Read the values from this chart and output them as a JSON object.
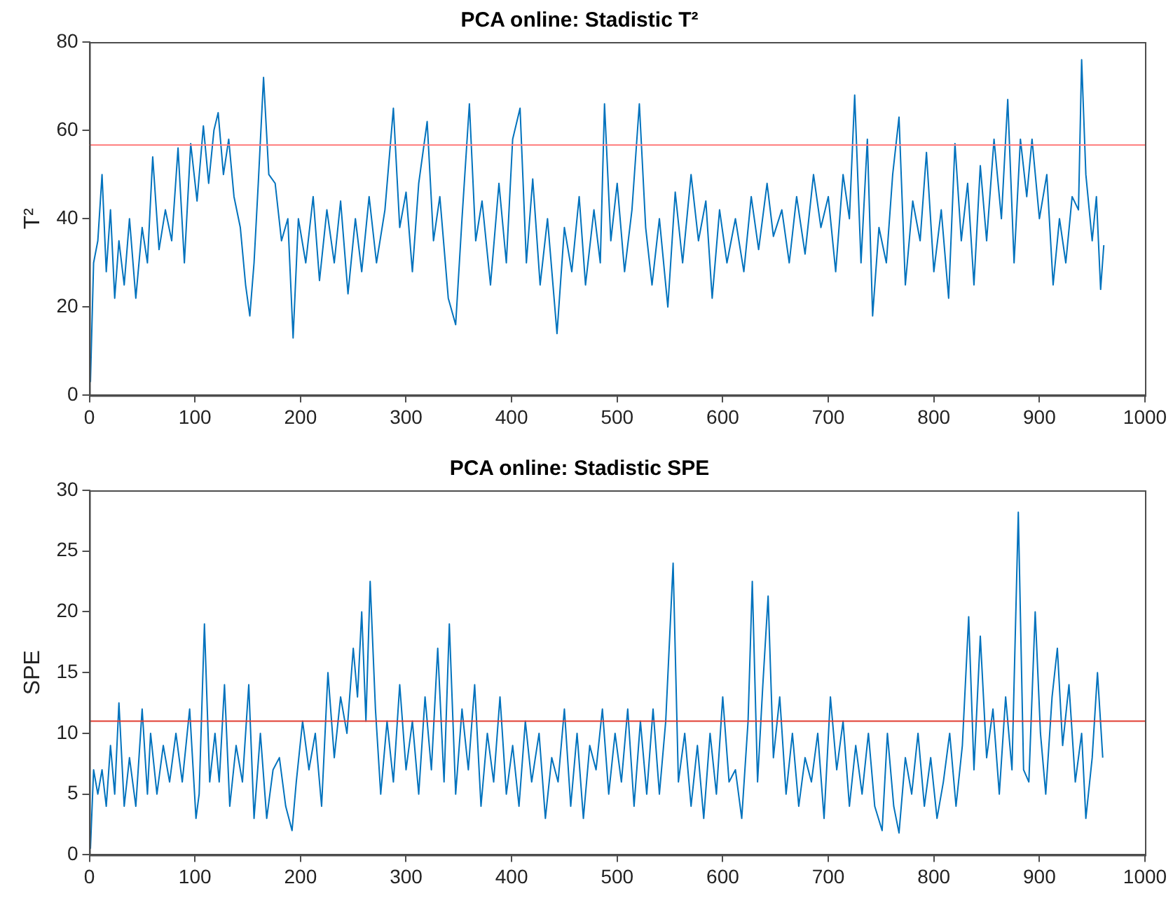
{
  "chart_data": [
    {
      "type": "line",
      "title": "PCA online: Stadistic T²",
      "ylabel": "T²",
      "xlim": [
        0,
        1000
      ],
      "xticks": [
        0,
        100,
        200,
        300,
        400,
        500,
        600,
        700,
        800,
        900,
        1000
      ],
      "ylim": [
        0,
        80
      ],
      "yticks": [
        0,
        20,
        40,
        60,
        80
      ],
      "grid": false,
      "legend": false,
      "marker": "none",
      "line_style": "solid",
      "ref_lines": [
        {
          "axis": "y",
          "value": 56.7,
          "color": "#ff8080"
        }
      ],
      "series": [
        {
          "color": "#0072bd",
          "x": [
            1,
            4,
            8,
            12,
            16,
            20,
            24,
            28,
            33,
            38,
            44,
            50,
            55,
            60,
            66,
            72,
            78,
            84,
            90,
            96,
            102,
            108,
            113,
            118,
            122,
            127,
            132,
            137,
            143,
            148,
            152,
            156,
            160,
            165,
            170,
            176,
            182,
            188,
            193,
            198,
            205,
            212,
            218,
            225,
            232,
            238,
            245,
            252,
            258,
            265,
            272,
            280,
            288,
            294,
            300,
            306,
            312,
            320,
            326,
            332,
            340,
            347,
            353,
            360,
            366,
            372,
            380,
            388,
            395,
            401,
            408,
            414,
            420,
            427,
            434,
            443,
            450,
            457,
            464,
            470,
            478,
            484,
            488,
            494,
            500,
            507,
            514,
            521,
            527,
            533,
            540,
            548,
            555,
            562,
            570,
            577,
            584,
            590,
            597,
            604,
            612,
            620,
            627,
            634,
            642,
            648,
            656,
            663,
            670,
            678,
            686,
            693,
            700,
            707,
            714,
            720,
            725,
            731,
            737,
            742,
            748,
            755,
            761,
            767,
            773,
            780,
            787,
            793,
            800,
            807,
            814,
            820,
            826,
            832,
            838,
            844,
            850,
            857,
            864,
            870,
            876,
            882,
            888,
            893,
            900,
            907,
            913,
            919,
            925,
            931,
            937,
            940,
            944,
            950,
            954,
            958,
            961
          ],
          "values": [
            3,
            30,
            35,
            50,
            28,
            42,
            22,
            35,
            25,
            40,
            22,
            38,
            30,
            54,
            33,
            42,
            35,
            56,
            30,
            57,
            44,
            61,
            48,
            60,
            64,
            50,
            58,
            45,
            38,
            25,
            18,
            30,
            48,
            72,
            50,
            48,
            35,
            40,
            13,
            40,
            30,
            45,
            26,
            42,
            30,
            44,
            23,
            40,
            28,
            45,
            30,
            42,
            65,
            38,
            46,
            28,
            48,
            62,
            35,
            45,
            22,
            16,
            40,
            66,
            35,
            44,
            25,
            48,
            30,
            58,
            65,
            30,
            49,
            25,
            40,
            14,
            38,
            28,
            45,
            25,
            42,
            30,
            66,
            35,
            48,
            28,
            42,
            66,
            38,
            25,
            40,
            20,
            46,
            30,
            50,
            35,
            44,
            22,
            42,
            30,
            40,
            28,
            45,
            33,
            48,
            36,
            42,
            30,
            45,
            32,
            50,
            38,
            45,
            28,
            50,
            40,
            68,
            30,
            58,
            18,
            38,
            30,
            50,
            63,
            25,
            44,
            35,
            55,
            28,
            42,
            22,
            57,
            35,
            48,
            25,
            52,
            35,
            58,
            40,
            67,
            30,
            58,
            45,
            58,
            40,
            50,
            25,
            40,
            30,
            45,
            42,
            76,
            50,
            35,
            45,
            24,
            34
          ]
        }
      ]
    },
    {
      "type": "line",
      "title": "PCA online: Stadistic SPE",
      "ylabel": "SPE",
      "xlim": [
        0,
        1000
      ],
      "xticks": [
        0,
        100,
        200,
        300,
        400,
        500,
        600,
        700,
        800,
        900,
        1000
      ],
      "ylim": [
        0,
        30
      ],
      "yticks": [
        0,
        5,
        10,
        15,
        20,
        25,
        30
      ],
      "grid": false,
      "legend": false,
      "marker": "none",
      "line_style": "solid",
      "ref_lines": [
        {
          "axis": "y",
          "value": 11,
          "color": "#e03c31"
        }
      ],
      "series": [
        {
          "color": "#0072bd",
          "x": [
            1,
            4,
            8,
            12,
            16,
            20,
            24,
            28,
            33,
            38,
            44,
            50,
            55,
            58,
            64,
            70,
            76,
            82,
            88,
            95,
            101,
            104,
            109,
            114,
            119,
            123,
            128,
            133,
            139,
            145,
            151,
            156,
            162,
            168,
            174,
            180,
            186,
            192,
            196,
            202,
            208,
            214,
            220,
            226,
            232,
            238,
            244,
            250,
            254,
            258,
            262,
            266,
            271,
            276,
            282,
            288,
            294,
            300,
            306,
            312,
            318,
            324,
            330,
            336,
            341,
            347,
            353,
            359,
            365,
            371,
            377,
            383,
            389,
            395,
            401,
            407,
            413,
            419,
            426,
            432,
            438,
            444,
            450,
            456,
            462,
            468,
            474,
            480,
            486,
            492,
            498,
            504,
            510,
            516,
            522,
            528,
            534,
            540,
            546,
            553,
            558,
            564,
            570,
            576,
            582,
            588,
            594,
            600,
            606,
            612,
            618,
            624,
            628,
            633,
            638,
            643,
            648,
            654,
            660,
            666,
            672,
            678,
            684,
            690,
            696,
            702,
            708,
            714,
            720,
            726,
            732,
            738,
            744,
            751,
            756,
            762,
            767,
            773,
            779,
            785,
            791,
            797,
            803,
            809,
            815,
            821,
            827,
            833,
            838,
            844,
            850,
            856,
            862,
            868,
            874,
            880,
            885,
            890,
            896,
            901,
            906,
            912,
            917,
            922,
            928,
            934,
            940,
            944,
            950,
            955,
            960
          ],
          "values": [
            0.5,
            7,
            5,
            7,
            4,
            9,
            5,
            12.5,
            4,
            8,
            4,
            12,
            5,
            10,
            5,
            9,
            6,
            10,
            6,
            12,
            3,
            5,
            19,
            6,
            10,
            6,
            14,
            4,
            9,
            6,
            14,
            3,
            10,
            3,
            7,
            8,
            4,
            2,
            6,
            11,
            7,
            10,
            4,
            15,
            8,
            13,
            10,
            17,
            13,
            20,
            11,
            22.5,
            12,
            5,
            11,
            6,
            14,
            7,
            11,
            5,
            13,
            7,
            17,
            6,
            19,
            5,
            12,
            7,
            14,
            4,
            10,
            6,
            13,
            5,
            9,
            4,
            11,
            6,
            10,
            3,
            8,
            6,
            12,
            4,
            10,
            3,
            9,
            7,
            12,
            5,
            10,
            6,
            12,
            4,
            11,
            5,
            12,
            5,
            11,
            24,
            6,
            10,
            4,
            9,
            3,
            10,
            5,
            13,
            6,
            7,
            3,
            11,
            22.5,
            6,
            14,
            21.3,
            8,
            13,
            5,
            10,
            4,
            8,
            6,
            10,
            3,
            13,
            7,
            11,
            4,
            9,
            5,
            10,
            4,
            2,
            10,
            4,
            1.8,
            8,
            5,
            10,
            4,
            8,
            3,
            6,
            10,
            4,
            9,
            19.6,
            7,
            18,
            8,
            12,
            5,
            13,
            7,
            28.2,
            7,
            6,
            20,
            10,
            5,
            13,
            17,
            9,
            14,
            6,
            10,
            3,
            8,
            15,
            8
          ]
        }
      ]
    }
  ]
}
